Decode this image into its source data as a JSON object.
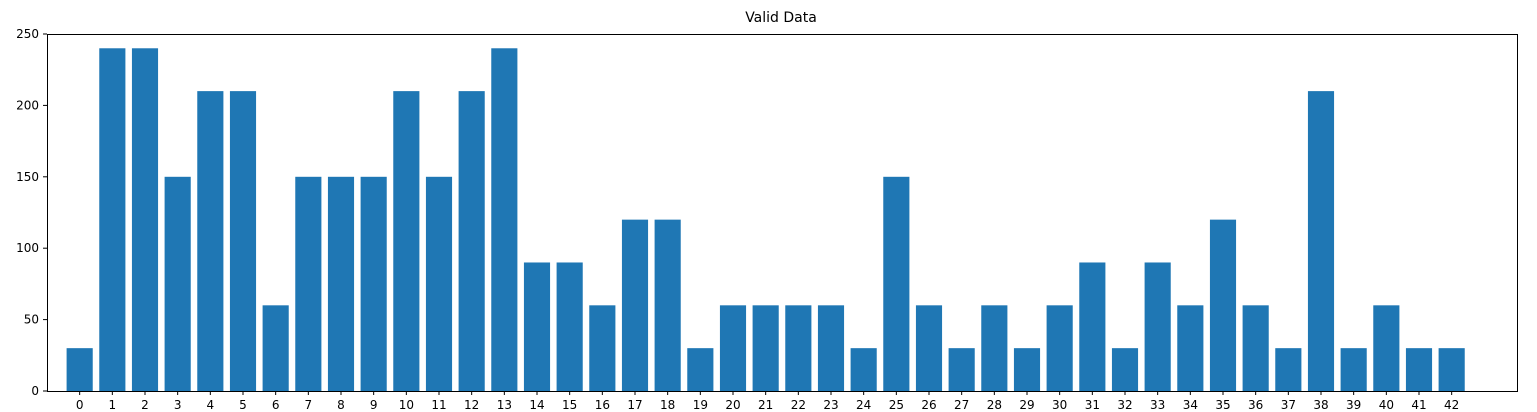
{
  "chart_data": {
    "type": "bar",
    "title": "Valid Data",
    "xlabel": "",
    "ylabel": "",
    "categories": [
      "0",
      "1",
      "2",
      "3",
      "4",
      "5",
      "6",
      "7",
      "8",
      "9",
      "10",
      "11",
      "12",
      "13",
      "14",
      "15",
      "16",
      "17",
      "18",
      "19",
      "20",
      "21",
      "22",
      "23",
      "24",
      "25",
      "26",
      "27",
      "28",
      "29",
      "30",
      "31",
      "32",
      "33",
      "34",
      "35",
      "36",
      "37",
      "38",
      "39",
      "40",
      "41",
      "42"
    ],
    "values": [
      30,
      240,
      240,
      150,
      210,
      210,
      60,
      150,
      150,
      150,
      210,
      150,
      210,
      240,
      90,
      90,
      60,
      120,
      120,
      30,
      60,
      60,
      60,
      60,
      30,
      150,
      60,
      30,
      60,
      30,
      60,
      90,
      30,
      90,
      60,
      120,
      60,
      30,
      210,
      30,
      60,
      30,
      30
    ],
    "ylim": [
      0,
      250
    ],
    "yticks": [
      0,
      50,
      100,
      150,
      200,
      250
    ],
    "xlim": [
      -1,
      44
    ],
    "grid": false,
    "bar_color": "#1f77b4"
  }
}
